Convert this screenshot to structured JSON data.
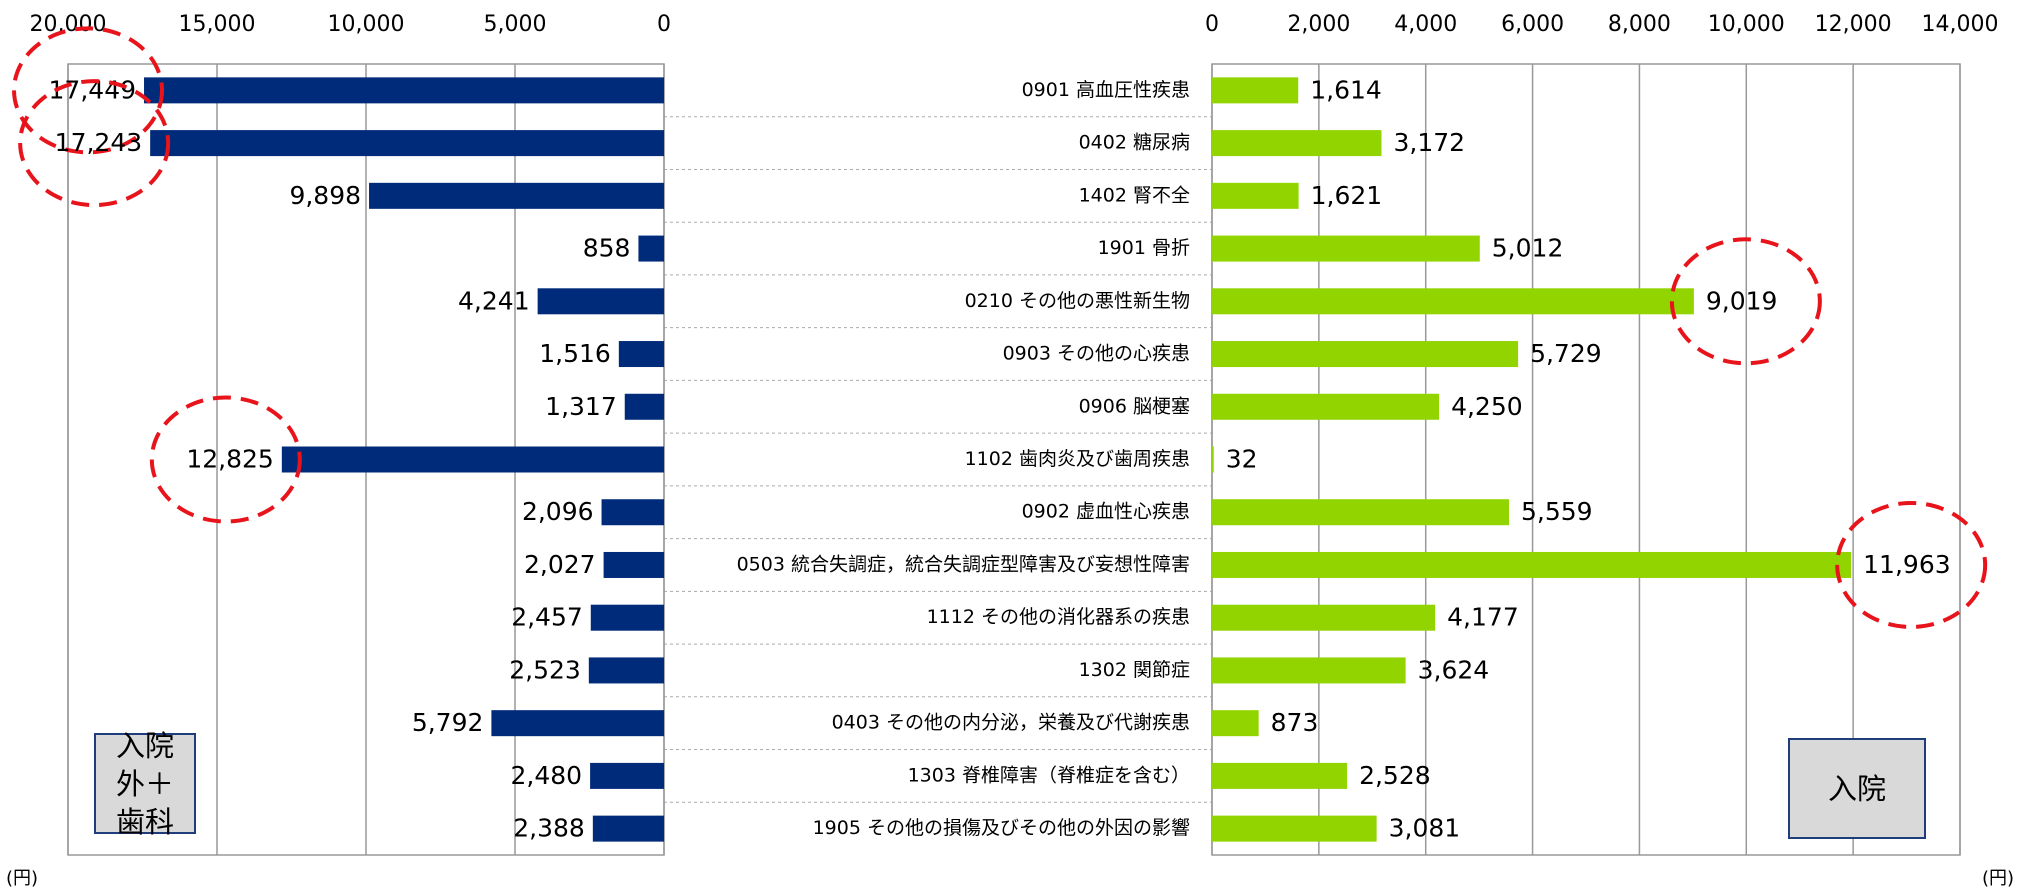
{
  "chart_data": [
    {
      "type": "hbar",
      "direction": "reversed",
      "color": "#002a7a",
      "categories": [
        "0901 高血圧性疾患",
        "0402 糖尿病",
        "1402 腎不全",
        "1901 骨折",
        "0210 その他の悪性新生物",
        "0903 その他の心疾患",
        "0906 脳梗塞",
        "1102 歯肉炎及び歯周疾患",
        "0902 虚血性心疾患",
        "0503 統合失調症，統合失調症型障害及び妄想性障害",
        "1112 その他の消化器系の疾患",
        "1302 関節症",
        "0403 その他の内分泌，栄養及び代謝疾患",
        "1303 脊椎障害（脊椎症を含む）",
        "1905 その他の損傷及びその他の外因の影響"
      ],
      "values": [
        17449,
        17243,
        9898,
        858,
        4241,
        1516,
        1317,
        12825,
        2096,
        2027,
        2457,
        2523,
        5792,
        2480,
        2388
      ],
      "value_labels": [
        "17,449",
        "17,243",
        "9,898",
        "858",
        "4,241",
        "1,516",
        "1,317",
        "12,825",
        "2,096",
        "2,027",
        "2,457",
        "2,523",
        "5,792",
        "2,480",
        "2,388"
      ],
      "xlim": [
        20000,
        0
      ],
      "xticks": [
        {
          "value": 20000,
          "label": "20,000"
        },
        {
          "value": 15000,
          "label": "15,000"
        },
        {
          "value": 10000,
          "label": "10,000"
        },
        {
          "value": 5000,
          "label": "5,000"
        },
        0
      ],
      "grid": true,
      "highlight": [
        0,
        1,
        7
      ],
      "box_label": "入院外＋歯科",
      "unit": "(円)"
    },
    {
      "type": "hbar",
      "direction": "normal",
      "color": "#92d400",
      "values": [
        1614,
        3172,
        1621,
        5012,
        9019,
        5729,
        4250,
        32,
        5559,
        11963,
        4177,
        3624,
        873,
        2528,
        3081
      ],
      "value_labels": [
        "1,614",
        "3,172",
        "1,621",
        "5,012",
        "9,019",
        "5,729",
        "4,250",
        "32",
        "5,559",
        "11,963",
        "4,177",
        "3,624",
        "873",
        "2,528",
        "3,081"
      ],
      "xlim": [
        0,
        14000
      ],
      "xticks": [
        0,
        {
          "value": 2000,
          "label": "2,000"
        },
        {
          "value": 4000,
          "label": "4,000"
        },
        {
          "value": 6000,
          "label": "6,000"
        },
        {
          "value": 8000,
          "label": "8,000"
        },
        {
          "value": 10000,
          "label": "10,000"
        },
        {
          "value": 12000,
          "label": "12,000"
        },
        {
          "value": 14000,
          "label": "14,000"
        }
      ],
      "grid": true,
      "highlight": [
        4,
        9
      ],
      "box_label": "入院",
      "unit": "(円)"
    }
  ]
}
